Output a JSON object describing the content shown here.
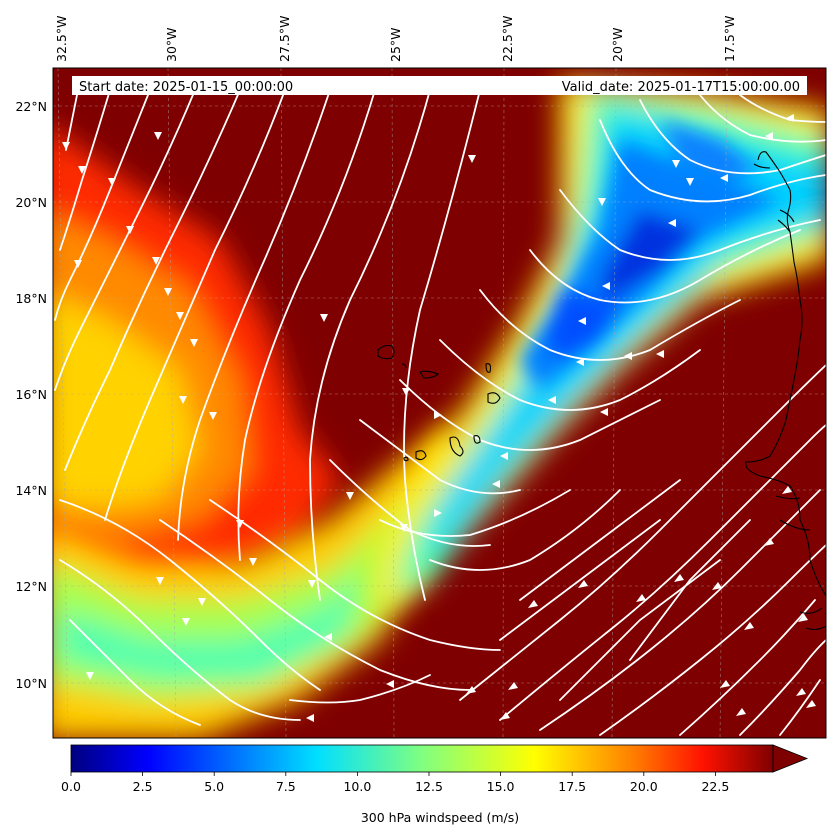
{
  "map": {
    "lon_ticks": [
      "32.5°W",
      "30°W",
      "27.5°W",
      "25°W",
      "22.5°W",
      "20°W",
      "17.5°W"
    ],
    "lat_ticks": [
      "22°N",
      "20°N",
      "18°N",
      "16°N",
      "14°N",
      "12°N",
      "10°N"
    ],
    "start_date": "Start date: 2025-01-15_00:00:00",
    "valid_date": "Valid_date: 2025-01-17T15:00:00.00"
  },
  "colorbar": {
    "label": "300 hPa windspeed (m/s)",
    "ticks": [
      "0.0",
      "2.5",
      "5.0",
      "7.5",
      "10.0",
      "12.5",
      "15.0",
      "17.5",
      "20.0",
      "22.5"
    ],
    "range": [
      0,
      25
    ],
    "colors": {
      "jet_low": "#00007f",
      "jet_mid": "#80ff80",
      "jet_high": "#7f0000"
    }
  }
}
